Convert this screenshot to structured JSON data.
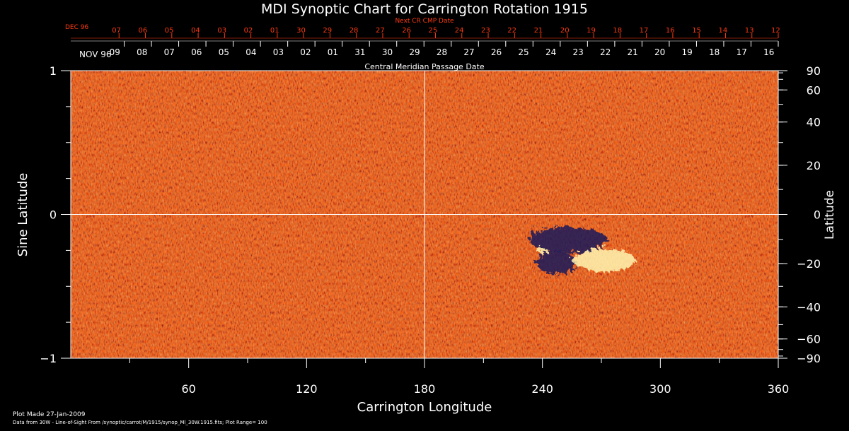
{
  "chart_data": {
    "type": "heatmap",
    "title": "MDI Synoptic Chart for Carrington Rotation 1915",
    "xlabel": "Carrington Longitude",
    "ylabel_left": "Sine Latitude",
    "ylabel_right": "Latitude",
    "xlim": [
      0,
      360
    ],
    "ylim": [
      -1,
      1
    ],
    "x_ticks": [
      60,
      120,
      180,
      240,
      300,
      360
    ],
    "y_ticks_left": [
      {
        "value": 1,
        "label": "1"
      },
      {
        "value": 0,
        "label": "0"
      },
      {
        "value": -1,
        "label": "−1"
      }
    ],
    "y_ticks_right": [
      90,
      60,
      40,
      20,
      0,
      -20,
      -40,
      -60,
      -90
    ],
    "y_ticks_right_labels": [
      "90",
      "60",
      "40",
      "20",
      "0",
      "−20",
      "−40",
      "−60",
      "−90"
    ],
    "crosshair": {
      "longitude": 180,
      "sine_latitude": 0
    },
    "top_axis": {
      "label": "Central Meridian Passage Date",
      "month_label": "NOV 96",
      "dates": [
        "09",
        "08",
        "07",
        "06",
        "05",
        "04",
        "03",
        "02",
        "01",
        "31",
        "30",
        "29",
        "28",
        "27",
        "26",
        "25",
        "24",
        "23",
        "22",
        "21",
        "20",
        "19",
        "18",
        "17",
        "16"
      ]
    },
    "next_axis": {
      "label": "Next CR CMP Date",
      "month_label": "DEC 96",
      "dates": [
        "07",
        "06",
        "05",
        "04",
        "03",
        "02",
        "01",
        "30",
        "29",
        "28",
        "27",
        "26",
        "25",
        "24",
        "23",
        "22",
        "21",
        "20",
        "19",
        "18",
        "17",
        "16",
        "15",
        "14",
        "13",
        "12"
      ]
    },
    "colors": {
      "background": "#ff5a0a",
      "negative_polarity": "#1a1a5a",
      "positive_polarity": "#fff6b0",
      "next_axis": "#ff3a10",
      "axis": "#ffffff"
    },
    "features": [
      {
        "name": "negative",
        "lon": 252,
        "sinlat": -0.16,
        "rx": 20,
        "ry": 0.09
      },
      {
        "name": "negative",
        "lon": 246,
        "sinlat": -0.32,
        "rx": 10,
        "ry": 0.08
      },
      {
        "name": "positive",
        "lon": 270,
        "sinlat": -0.3,
        "rx": 16,
        "ry": 0.08
      },
      {
        "name": "positive",
        "lon": 239,
        "sinlat": -0.24,
        "rx": 3,
        "ry": 0.02
      }
    ],
    "footer": {
      "plot_made": "Plot Made 27-Jan-2009",
      "data_from": "Data from 30W - Line-of-Sight From /synoptic/carrot/M/1915/synop_Ml_30W.1915.fits; Plot Range= 100"
    }
  }
}
